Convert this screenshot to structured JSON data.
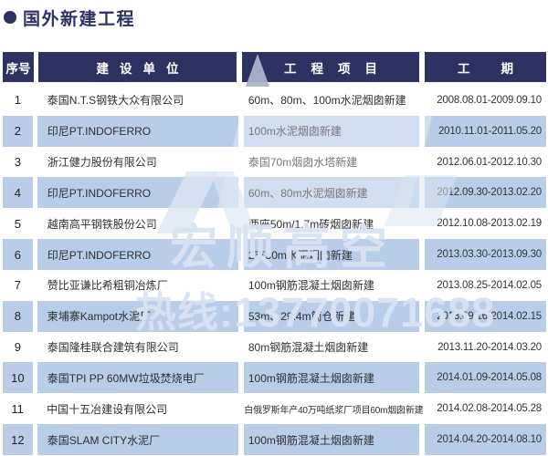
{
  "title": {
    "text": "国外新建工程"
  },
  "watermark": {
    "brand_text": "宏顺高空",
    "hotline_text": "热线:13770071688"
  },
  "colors": {
    "header_bg": "#2d3263",
    "alt_row_bg": "#b9cde8",
    "title_color": "#2d3263",
    "watermark_color": "#d9e3f2"
  },
  "table": {
    "headers": [
      "序号",
      "建设单位",
      "工程项目",
      "工期"
    ],
    "rows": [
      {
        "num": "1",
        "company": "泰国N.T.S钢铁大众有限公司",
        "project": "60m、80m、100m水泥烟囱新建",
        "period": "2008.08.01-2009.09.10"
      },
      {
        "num": "2",
        "company": "印尼PT.INDOFERRO",
        "project": "100m水泥烟囱新建",
        "period": "2010.11.01-2011.05.20"
      },
      {
        "num": "3",
        "company": "浙江健力股份有限公司",
        "project": "泰国70m烟囱水塔新建",
        "period": "2012.06.01-2012.10.30"
      },
      {
        "num": "4",
        "company": "印尼PT.INDOFERRO",
        "project": "60m、80m水泥烟囱新建",
        "period": "2012.09.30-2013.02.20"
      },
      {
        "num": "5",
        "company": "越南高平钢铁股份公司",
        "project": "两座50m/1.7m砖烟囱新建",
        "period": "2012.10.08-2013.02.19"
      },
      {
        "num": "6",
        "company": "印尼PT.INDOFERRO",
        "project": "2支80m水泥烟囱新建",
        "period": "2013.03.30-2013.09.30"
      },
      {
        "num": "7",
        "company": "赞比亚谦比希粗铜冶炼厂",
        "project": "100m钢筋混凝土烟囱新建",
        "period": "2013.08.25-2014.02.05"
      },
      {
        "num": "8",
        "company": "柬埔寨Kampot水泥厂",
        "project": "53m、29.4m筒仓新建",
        "period": "2013.09.16-2014.02.15"
      },
      {
        "num": "9",
        "company": "泰国隆桂联合建筑有限公司",
        "project": "80m钢筋混凝土烟囱新建",
        "period": "2013.11.20-2014.03.20"
      },
      {
        "num": "10",
        "company": "泰国TPI PP 60MW垃圾焚烧电厂",
        "project": "100m钢筋混凝土烟囱新建",
        "period": "2014.01.09-2014.05.08"
      },
      {
        "num": "11",
        "company": "中国十五冶建设有限公司",
        "project": "白俄罗斯年产40万吨纸浆厂项目60m烟囱新建",
        "period": "2014.02.08-2014.05.28"
      },
      {
        "num": "12",
        "company": "泰国SLAM CITY水泥厂",
        "project": "100m钢筋混凝土烟囱新建",
        "period": "2014.04.20-2014.08.10"
      }
    ]
  }
}
